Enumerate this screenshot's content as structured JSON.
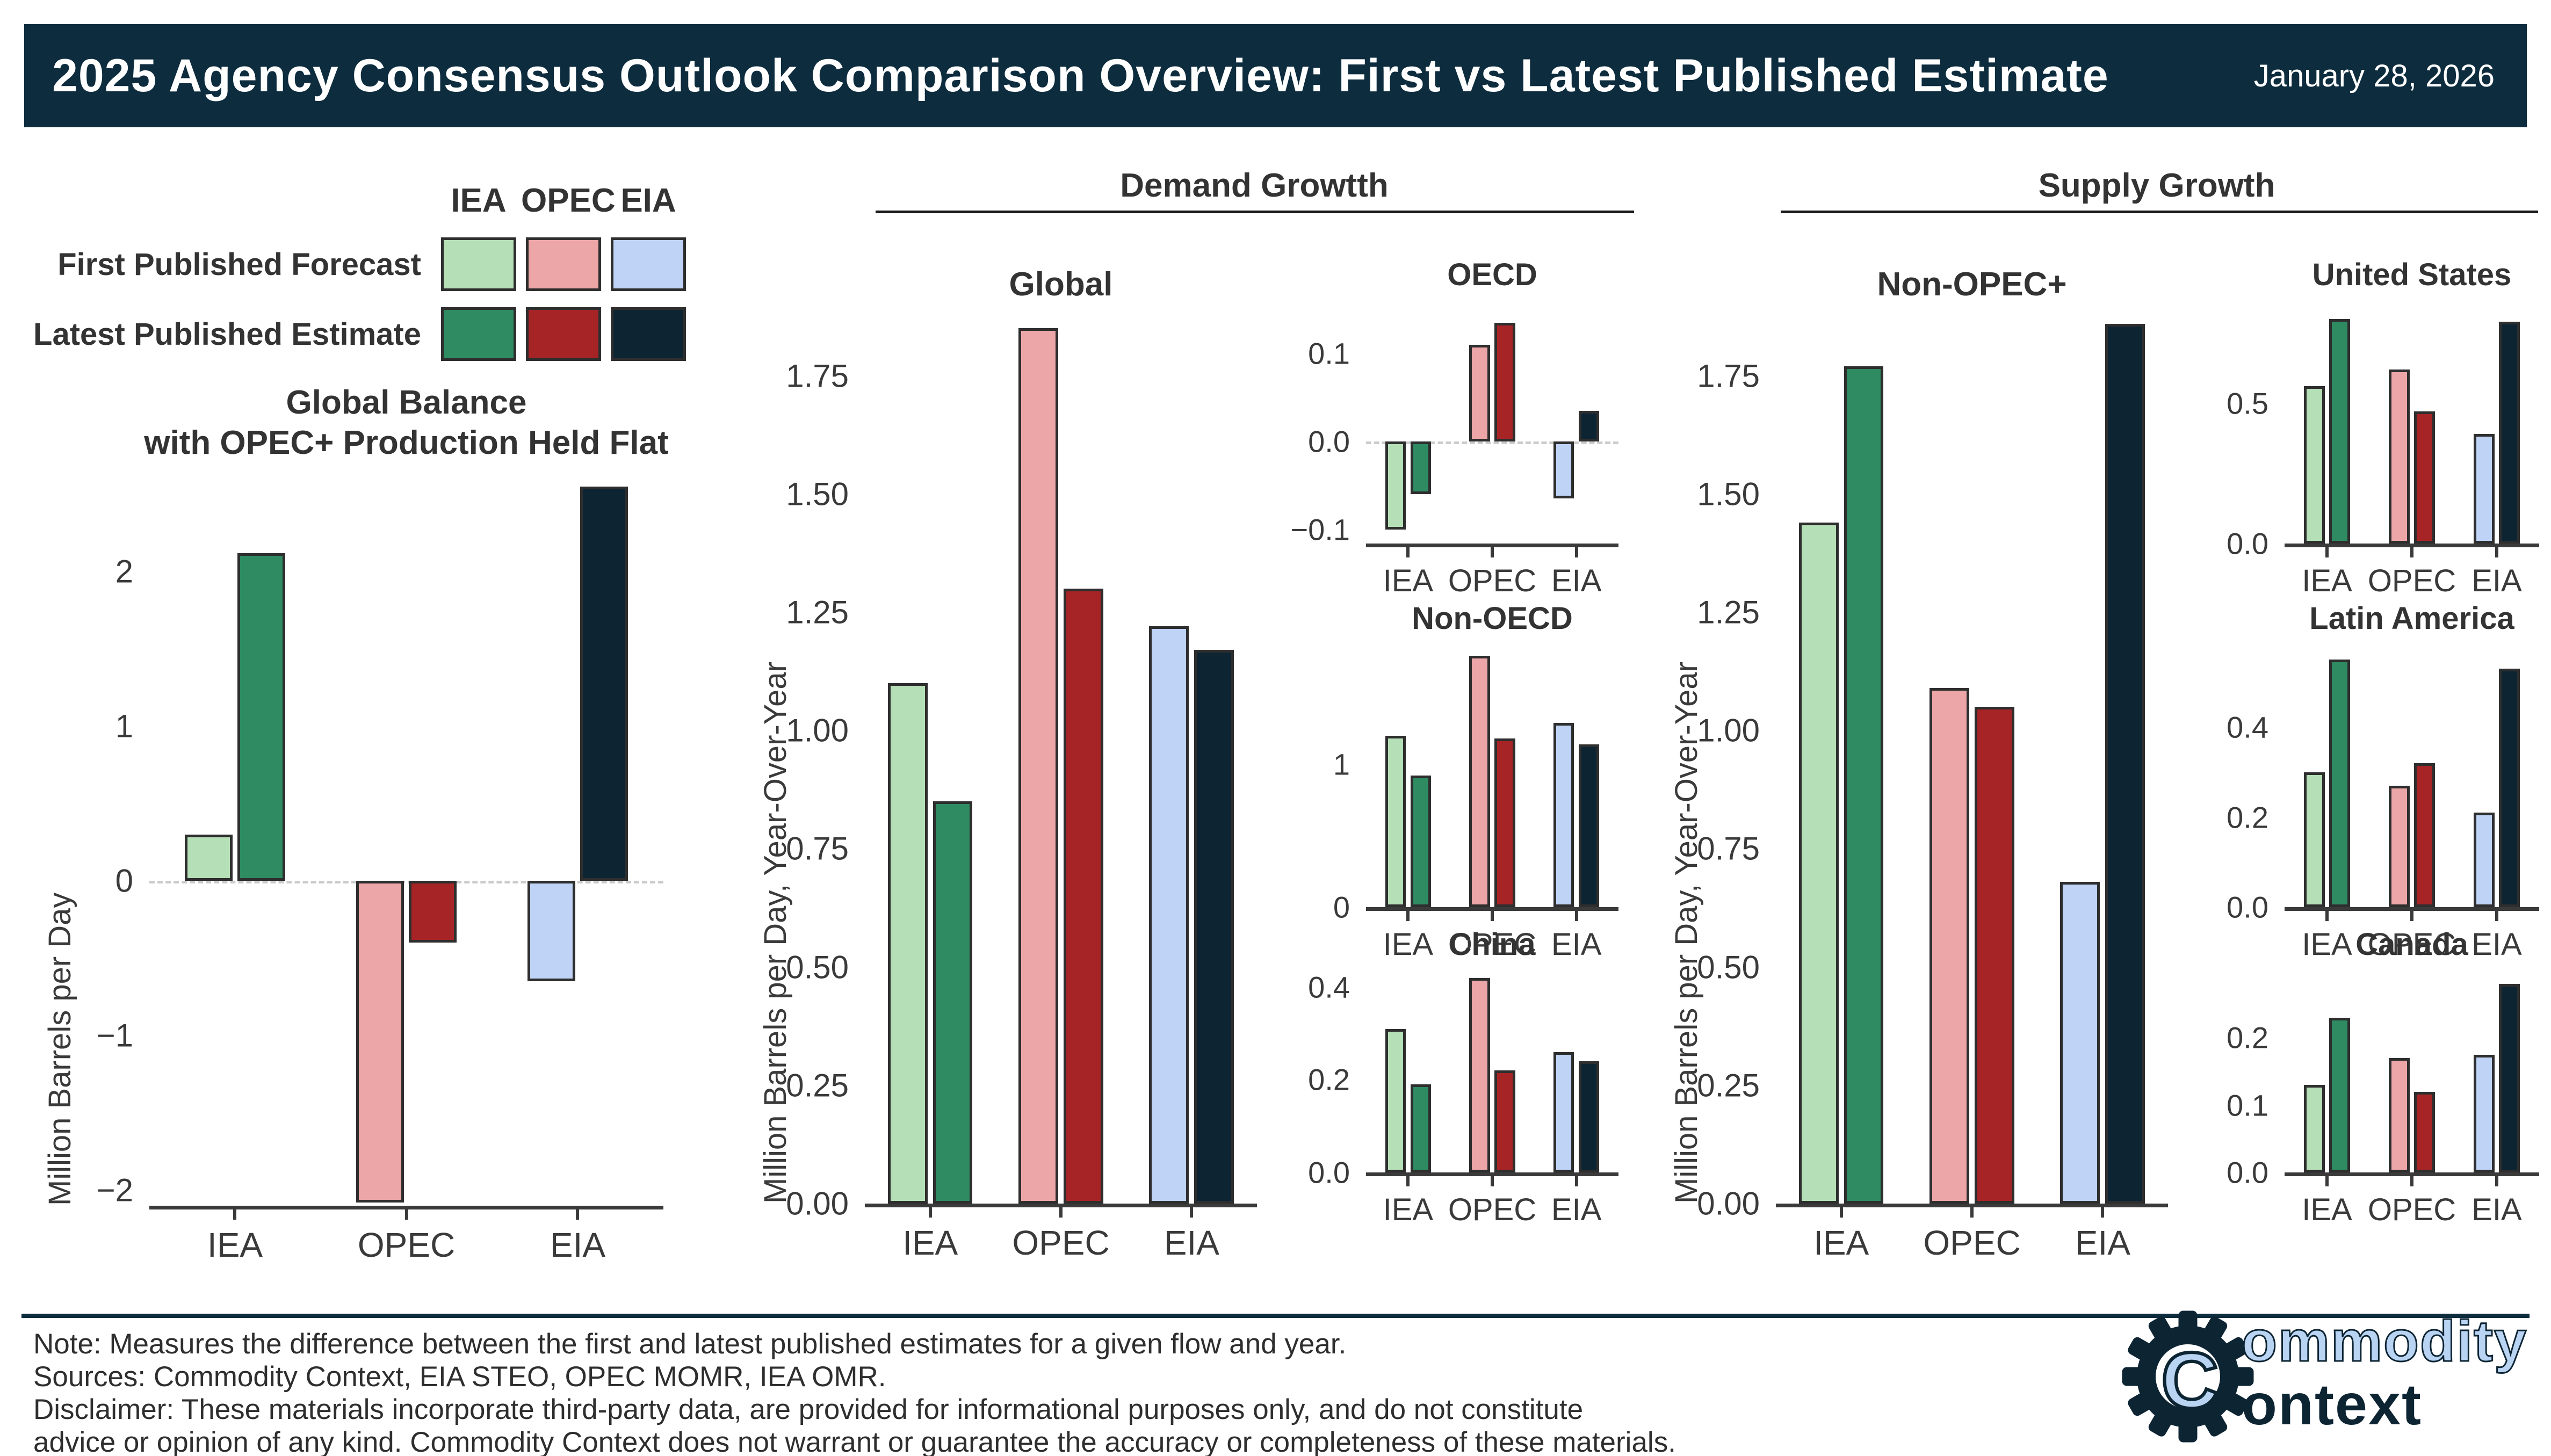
{
  "header": {
    "title": "2025 Agency Consensus Outlook Comparison Overview: First vs Latest Published Estimate",
    "date": "January 28, 2026"
  },
  "legend": {
    "columns": [
      "IEA",
      "OPEC",
      "EIA"
    ],
    "rows": [
      {
        "label": "First Published Forecast"
      },
      {
        "label": "Latest Published Estimate"
      }
    ]
  },
  "sections": {
    "demand": "Demand Growtth",
    "supply": "Supply Growth"
  },
  "colors": {
    "first": [
      "#b5dfb6",
      "#eda6a8",
      "#bed3f5"
    ],
    "latest": [
      "#2e8b62",
      "#a62426",
      "#0d2433"
    ],
    "title_bar": "#0d2c3e",
    "bar_edge": "#2e2e2e",
    "axis": "#3a3a3a",
    "logo_light_blue": "#b9d3f2",
    "logo_navy": "#0d2433"
  },
  "footer": {
    "lines": [
      "Note: Measures the difference between the first and latest published estimates for a given flow and year.",
      "Sources: Commodity Context, EIA STEO, OPEC MOMR, IEA OMR.",
      "Disclaimer: These materials incorporate third-party data, are provided for informational purposes only, and do not constitute",
      "advice or opinion of any kind. Commodity Context does not warrant or guarantee the accuracy or completeness of these materials."
    ]
  },
  "logo": {
    "word1": "ommodity",
    "word2": "ontext",
    "gear_letter": "C"
  },
  "chart_data": [
    {
      "type": "bar",
      "title_lines": [
        "Global Balance",
        "with OPEC+ Production Held Flat"
      ],
      "ylabel": "Million Barrels per Day",
      "categories": [
        "IEA",
        "OPEC",
        "EIA"
      ],
      "series": [
        {
          "name": "First Published Forecast",
          "values": [
            0.3,
            -2.08,
            -0.65
          ]
        },
        {
          "name": "Latest Published Estimate",
          "values": [
            2.12,
            -0.4,
            2.55
          ]
        }
      ],
      "ylim": [
        -2.1,
        2.64
      ],
      "yticks": [
        {
          "v": 2,
          "label": "2"
        },
        {
          "v": 1,
          "label": "1"
        },
        {
          "v": 0,
          "label": "0"
        },
        {
          "v": -1,
          "label": "−1"
        },
        {
          "v": -2,
          "label": "−2"
        }
      ],
      "zero_line": true,
      "grid": false
    },
    {
      "type": "bar",
      "title_lines": [
        "Global"
      ],
      "ylabel": "Million Barrels per Day, Year-Over-Year",
      "categories": [
        "IEA",
        "OPEC",
        "EIA"
      ],
      "series": [
        {
          "name": "First Published Forecast",
          "values": [
            1.1,
            1.85,
            1.22
          ]
        },
        {
          "name": "Latest Published Estimate",
          "values": [
            0.85,
            1.3,
            1.17
          ]
        }
      ],
      "ylim": [
        0,
        1.88
      ],
      "yticks": [
        {
          "v": 1.75,
          "label": "1.75"
        },
        {
          "v": 1.5,
          "label": "1.50"
        },
        {
          "v": 1.25,
          "label": "1.25"
        },
        {
          "v": 1.0,
          "label": "1.00"
        },
        {
          "v": 0.75,
          "label": "0.75"
        },
        {
          "v": 0.5,
          "label": "0.50"
        },
        {
          "v": 0.25,
          "label": "0.25"
        },
        {
          "v": 0.0,
          "label": "0.00"
        }
      ],
      "zero_line": false,
      "grid": false
    },
    {
      "type": "bar",
      "title_lines": [
        "OECD"
      ],
      "ylabel": "",
      "categories": [
        "IEA",
        "OPEC",
        "EIA"
      ],
      "series": [
        {
          "name": "First Published Forecast",
          "values": [
            -0.1,
            0.11,
            -0.065
          ]
        },
        {
          "name": "Latest Published Estimate",
          "values": [
            -0.06,
            0.135,
            0.035
          ]
        }
      ],
      "ylim": [
        -0.116,
        0.157
      ],
      "yticks": [
        {
          "v": 0.1,
          "label": "0.1"
        },
        {
          "v": 0,
          "label": "0.0"
        },
        {
          "v": -0.1,
          "label": "−0.1"
        }
      ],
      "zero_line": true,
      "grid": false
    },
    {
      "type": "bar",
      "title_lines": [
        "Non-OECD"
      ],
      "ylabel": "",
      "categories": [
        "IEA",
        "OPEC",
        "EIA"
      ],
      "series": [
        {
          "name": "First Published Forecast",
          "values": [
            1.2,
            1.76,
            1.29
          ]
        },
        {
          "name": "Latest Published Estimate",
          "values": [
            0.92,
            1.18,
            1.14
          ]
        }
      ],
      "ylim": [
        0,
        1.82
      ],
      "yticks": [
        {
          "v": 1,
          "label": "1"
        },
        {
          "v": 0,
          "label": "0"
        }
      ],
      "zero_line": false,
      "grid": false
    },
    {
      "type": "bar",
      "title_lines": [
        "China"
      ],
      "ylabel": "",
      "categories": [
        "IEA",
        "OPEC",
        "EIA"
      ],
      "series": [
        {
          "name": "First Published Forecast",
          "values": [
            0.31,
            0.42,
            0.26
          ]
        },
        {
          "name": "Latest Published Estimate",
          "values": [
            0.19,
            0.22,
            0.24
          ]
        }
      ],
      "ylim": [
        0,
        0.43
      ],
      "yticks": [
        {
          "v": 0.4,
          "label": "0.4"
        },
        {
          "v": 0.2,
          "label": "0.2"
        },
        {
          "v": 0,
          "label": "0.0"
        }
      ],
      "zero_line": false,
      "grid": false
    },
    {
      "type": "bar",
      "title_lines": [
        "Non-OPEC+"
      ],
      "ylabel": "Million Barrels per Day, Year-Over-Year",
      "categories": [
        "IEA",
        "OPEC",
        "EIA"
      ],
      "series": [
        {
          "name": "First Published Forecast",
          "values": [
            1.44,
            1.09,
            0.68
          ]
        },
        {
          "name": "Latest Published Estimate",
          "values": [
            1.77,
            1.05,
            1.86
          ]
        }
      ],
      "ylim": [
        0,
        1.88
      ],
      "yticks": [
        {
          "v": 1.75,
          "label": "1.75"
        },
        {
          "v": 1.5,
          "label": "1.50"
        },
        {
          "v": 1.25,
          "label": "1.25"
        },
        {
          "v": 1.0,
          "label": "1.00"
        },
        {
          "v": 0.75,
          "label": "0.75"
        },
        {
          "v": 0.5,
          "label": "0.50"
        },
        {
          "v": 0.25,
          "label": "0.25"
        },
        {
          "v": 0.0,
          "label": "0.00"
        }
      ],
      "zero_line": false,
      "grid": false
    },
    {
      "type": "bar",
      "title_lines": [
        "United States"
      ],
      "ylabel": "",
      "categories": [
        "IEA",
        "OPEC",
        "EIA"
      ],
      "series": [
        {
          "name": "First Published Forecast",
          "values": [
            0.56,
            0.62,
            0.39
          ]
        },
        {
          "name": "Latest Published Estimate",
          "values": [
            0.8,
            0.47,
            0.79
          ]
        }
      ],
      "ylim": [
        0,
        0.855
      ],
      "yticks": [
        {
          "v": 0.5,
          "label": "0.5"
        },
        {
          "v": 0,
          "label": "0.0"
        }
      ],
      "zero_line": false,
      "grid": false
    },
    {
      "type": "bar",
      "title_lines": [
        "Latin America"
      ],
      "ylabel": "",
      "categories": [
        "IEA",
        "OPEC",
        "EIA"
      ],
      "series": [
        {
          "name": "First Published Forecast",
          "values": [
            0.3,
            0.27,
            0.21
          ]
        },
        {
          "name": "Latest Published Estimate",
          "values": [
            0.55,
            0.32,
            0.53
          ]
        }
      ],
      "ylim": [
        0,
        0.578
      ],
      "yticks": [
        {
          "v": 0.4,
          "label": "0.4"
        },
        {
          "v": 0.2,
          "label": "0.2"
        },
        {
          "v": 0,
          "label": "0.0"
        }
      ],
      "zero_line": false,
      "grid": false
    },
    {
      "type": "bar",
      "title_lines": [
        "Canada"
      ],
      "ylabel": "",
      "categories": [
        "IEA",
        "OPEC",
        "EIA"
      ],
      "series": [
        {
          "name": "First Published Forecast",
          "values": [
            0.13,
            0.17,
            0.175
          ]
        },
        {
          "name": "Latest Published Estimate",
          "values": [
            0.23,
            0.12,
            0.28
          ]
        }
      ],
      "ylim": [
        0,
        0.296
      ],
      "yticks": [
        {
          "v": 0.2,
          "label": "0.2"
        },
        {
          "v": 0.1,
          "label": "0.1"
        },
        {
          "v": 0,
          "label": "0.0"
        }
      ],
      "zero_line": false,
      "grid": false
    }
  ]
}
